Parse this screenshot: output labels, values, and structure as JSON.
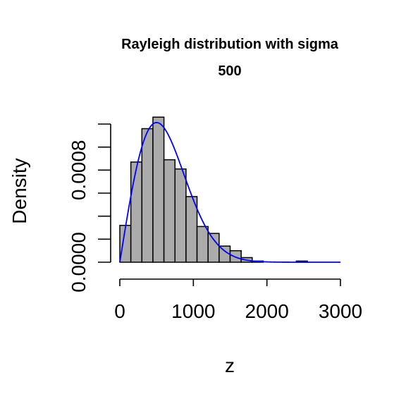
{
  "chart_data": {
    "type": "bar",
    "title": "Rayleigh distribution with sigma",
    "title_line2": "500",
    "xlabel": "z",
    "ylabel": "Density",
    "xlim": [
      0,
      3000
    ],
    "ylim": [
      0,
      0.0012
    ],
    "x_ticks": [
      0,
      1000,
      2000,
      3000
    ],
    "x_tick_labels": [
      "0",
      "1000",
      "2000",
      "3000"
    ],
    "y_ticks": [
      0,
      0.0002,
      0.0004,
      0.0006,
      0.0008,
      0.001,
      0.0012
    ],
    "y_tick_labels": [
      "0.0000",
      "",
      "",
      "",
      "0.0008",
      "",
      ""
    ],
    "bin_width": 150,
    "bars": [
      {
        "x0": 0,
        "x1": 150,
        "density": 0.00032
      },
      {
        "x0": 150,
        "x1": 300,
        "density": 0.00087
      },
      {
        "x0": 300,
        "x1": 450,
        "density": 0.00116
      },
      {
        "x0": 450,
        "x1": 600,
        "density": 0.00126
      },
      {
        "x0": 600,
        "x1": 750,
        "density": 0.00089
      },
      {
        "x0": 750,
        "x1": 900,
        "density": 0.00081
      },
      {
        "x0": 900,
        "x1": 1050,
        "density": 0.00057
      },
      {
        "x0": 1050,
        "x1": 1200,
        "density": 0.00031
      },
      {
        "x0": 1200,
        "x1": 1350,
        "density": 0.00025
      },
      {
        "x0": 1350,
        "x1": 1500,
        "density": 0.00014
      },
      {
        "x0": 1500,
        "x1": 1650,
        "density": 0.0001
      },
      {
        "x0": 1650,
        "x1": 1800,
        "density": 4e-05
      },
      {
        "x0": 1800,
        "x1": 1950,
        "density": 1e-05
      },
      {
        "x0": 2400,
        "x1": 2550,
        "density": 1e-05
      }
    ],
    "density_curve": {
      "distribution": "Rayleigh",
      "sigma": 500,
      "color": "#0000ff"
    },
    "bar_color": "#ababab",
    "grid": false,
    "legend": false
  }
}
